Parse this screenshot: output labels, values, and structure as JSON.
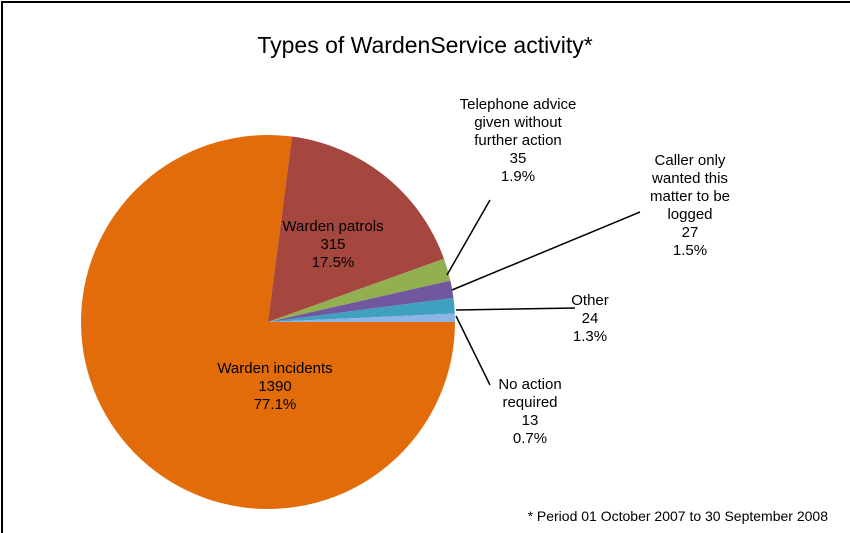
{
  "chart_data": {
    "type": "pie",
    "title": "Types of WardenService activity*",
    "categories": [
      "Warden incidents",
      "Warden patrols",
      "Telephone advice\ngiven without\nfurther action",
      "Caller only\nwanted this\nmatter to be\nlogged",
      "Other",
      "No action\nrequired"
    ],
    "values": [
      1390,
      315,
      35,
      27,
      24,
      13
    ],
    "percent_labels": [
      "77.1%",
      "17.5%",
      "1.9%",
      "1.5%",
      "1.3%",
      "0.7%"
    ],
    "colors": [
      "#e36c0a",
      "#a5463f",
      "#92b050",
      "#7057a0",
      "#3fa0bf",
      "#8eb4e3"
    ],
    "footnote": "* Period 01 October 2007 to 30 September 2008"
  }
}
